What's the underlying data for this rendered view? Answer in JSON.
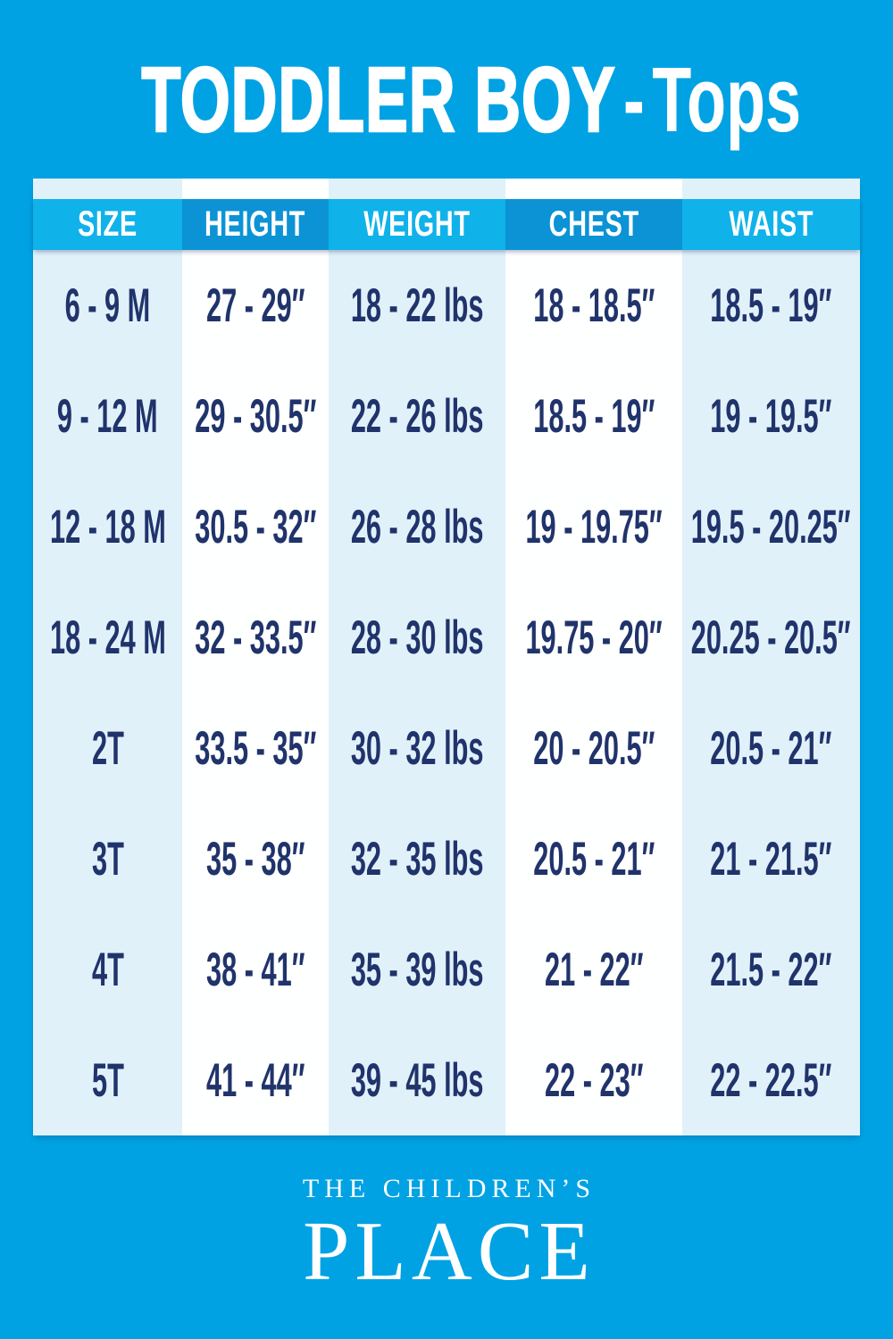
{
  "header": {
    "title_main": "TODDLER BOY",
    "title_separator": "-",
    "title_category": "Tops"
  },
  "table": {
    "columns": [
      {
        "label": "SIZE"
      },
      {
        "label": "HEIGHT"
      },
      {
        "label": "WEIGHT"
      },
      {
        "label": "CHEST"
      },
      {
        "label": "WAIST"
      }
    ],
    "rows": [
      {
        "size": "6 - 9 M",
        "height": "27 - 29″",
        "weight": "18 - 22 lbs",
        "chest": "18 - 18.5″",
        "waist": "18.5 - 19″"
      },
      {
        "size": "9 - 12 M",
        "height": "29 - 30.5″",
        "weight": "22 - 26 lbs",
        "chest": "18.5 - 19″",
        "waist": "19 - 19.5″"
      },
      {
        "size": "12 - 18 M",
        "height": "30.5 - 32″",
        "weight": "26 - 28 lbs",
        "chest": "19 - 19.75″",
        "waist": "19.5 - 20.25″"
      },
      {
        "size": "18 - 24 M",
        "height": "32 - 33.5″",
        "weight": "28 - 30 lbs",
        "chest": "19.75 - 20″",
        "waist": "20.25 - 20.5″"
      },
      {
        "size": "2T",
        "height": "33.5 - 35″",
        "weight": "30 - 32 lbs",
        "chest": "20 - 20.5″",
        "waist": "20.5 - 21″"
      },
      {
        "size": "3T",
        "height": "35 - 38″",
        "weight": "32 - 35 lbs",
        "chest": "20.5 - 21″",
        "waist": "21 - 21.5″"
      },
      {
        "size": "4T",
        "height": "38 - 41″",
        "weight": "35 - 39 lbs",
        "chest": "21 - 22″",
        "waist": "21.5 - 22″"
      },
      {
        "size": "5T",
        "height": "41 - 44″",
        "weight": "39 - 45 lbs",
        "chest": "22 - 23″",
        "waist": "22 - 22.5″"
      }
    ]
  },
  "footer": {
    "brand_line1": "THE CHILDREN’S",
    "brand_line2": "PLACE"
  },
  "colors": {
    "page_background": "#00A2E3",
    "header_cell_light": "#10B2EA",
    "header_cell_dark": "#0B93D6",
    "column_tint": "#E1F1FA",
    "column_white": "#FEFFFF",
    "header_text": "#FFFFFF",
    "body_text": "#20336B",
    "title_text": "#FFFFFF"
  }
}
